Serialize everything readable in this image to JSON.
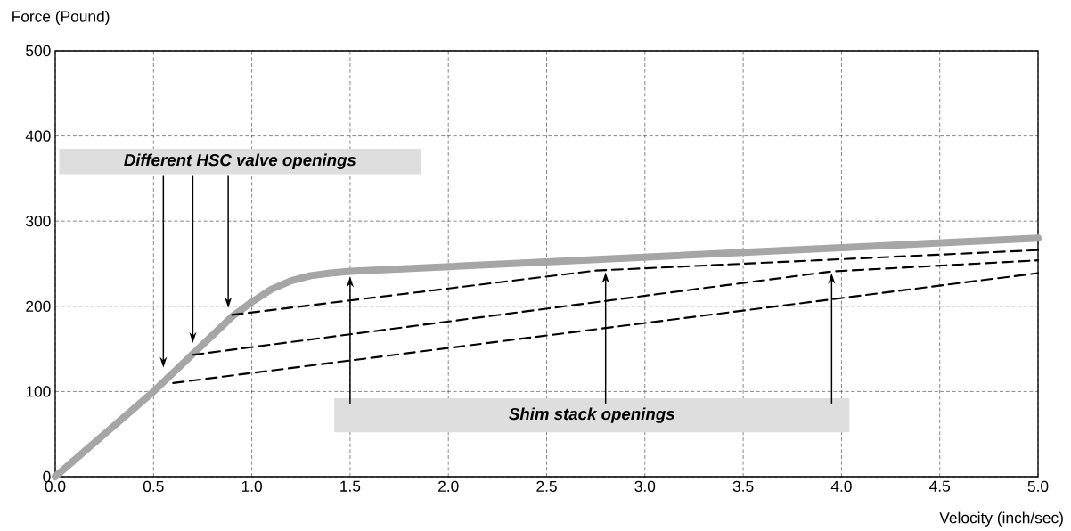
{
  "chart_data": {
    "type": "line",
    "ylabel": "Force (Pound)",
    "xlabel": "Velocity (inch/sec)",
    "xlim": [
      0,
      5
    ],
    "ylim": [
      0,
      500
    ],
    "xticks": [
      {
        "value": 0,
        "label": "0.0"
      },
      {
        "value": 0.5,
        "label": "0.5"
      },
      {
        "value": 1,
        "label": "1.0"
      },
      {
        "value": 1.5,
        "label": "1.5"
      },
      {
        "value": 2,
        "label": "2.0"
      },
      {
        "value": 2.5,
        "label": "2.5"
      },
      {
        "value": 3,
        "label": "3.0"
      },
      {
        "value": 3.5,
        "label": "3.5"
      },
      {
        "value": 4,
        "label": "4.0"
      },
      {
        "value": 4.5,
        "label": "4.5"
      },
      {
        "value": 5,
        "label": "5.0"
      }
    ],
    "yticks": [
      0,
      100,
      200,
      300,
      400,
      500
    ],
    "grid": true,
    "series": [
      {
        "color": "#a6a6a6",
        "line_style": "solid",
        "x": [
          0,
          0.5,
          0.9,
          1.0,
          1.1,
          1.2,
          1.3,
          1.4,
          1.5,
          5.0
        ],
        "values": [
          0,
          100,
          188,
          205,
          220,
          230,
          236,
          239,
          241,
          280
        ]
      },
      {
        "color": "#000000",
        "line_style": "dashed",
        "x": [
          0.9,
          2.75,
          5.0
        ],
        "values": [
          190,
          242,
          266
        ]
      },
      {
        "color": "#000000",
        "line_style": "dashed",
        "x": [
          0.7,
          3.95,
          5.0
        ],
        "values": [
          143,
          241,
          254
        ]
      },
      {
        "color": "#000000",
        "line_style": "dashed",
        "x": [
          0.6,
          5.0
        ],
        "values": [
          110,
          239
        ]
      }
    ],
    "annotations": [
      "Different HSC valve openings",
      {
        "text": "Shim stack openings",
        "x": 2.8,
        "y": 240
      }
    ]
  }
}
